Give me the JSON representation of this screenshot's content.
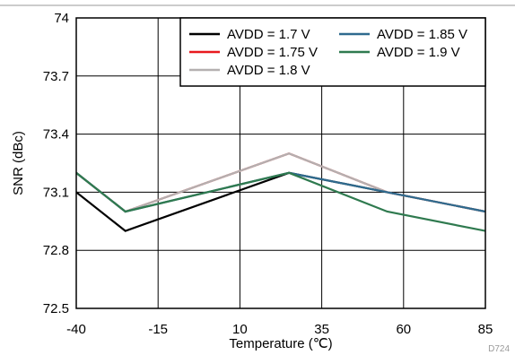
{
  "figure_id": "D724",
  "chart_data": {
    "type": "line",
    "title": "",
    "xlabel": "Temperature (℃)",
    "ylabel": "SNR (dBc)",
    "xlim": [
      -40,
      85
    ],
    "ylim": [
      72.5,
      74
    ],
    "x_ticks": [
      -40,
      -15,
      10,
      35,
      60,
      85
    ],
    "y_ticks": [
      72.5,
      72.8,
      73.1,
      73.4,
      73.7,
      74
    ],
    "x_tick_labels": [
      "-40",
      "-15",
      "10",
      "35",
      "60",
      "85"
    ],
    "y_tick_labels": [
      "72.5",
      "72.8",
      "73.1",
      "73.4",
      "73.7",
      "74"
    ],
    "grid": true,
    "legend_position": "top-right",
    "x": [
      -40,
      -25,
      25,
      55,
      85
    ],
    "series": [
      {
        "name": "AVDD = 1.7 V",
        "color": "#000000",
        "values": [
          73.1,
          72.9,
          73.2,
          73.1,
          73.0
        ]
      },
      {
        "name": "AVDD = 1.75 V",
        "color": "#e8191e",
        "values": [
          73.2,
          73.0,
          73.3,
          73.1,
          73.0
        ]
      },
      {
        "name": "AVDD = 1.8 V",
        "color": "#b4b0b0",
        "values": [
          73.2,
          73.0,
          73.3,
          73.1,
          73.0
        ]
      },
      {
        "name": "AVDD = 1.85 V",
        "color": "#2e6a8e",
        "values": [
          73.2,
          73.0,
          73.2,
          73.1,
          73.0
        ]
      },
      {
        "name": "AVDD = 1.9 V",
        "color": "#2f7a4f",
        "values": [
          73.2,
          73.0,
          73.2,
          73.0,
          72.9
        ]
      }
    ]
  }
}
